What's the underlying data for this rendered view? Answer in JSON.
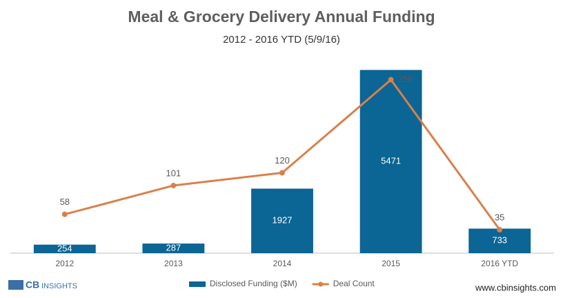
{
  "chart_data": {
    "type": "bar-line",
    "title": "Meal & Grocery Delivery Annual Funding",
    "subtitle": "2012 - 2016 YTD (5/9/16)",
    "categories": [
      "2012",
      "2013",
      "2014",
      "2015",
      "2016 YTD"
    ],
    "series": [
      {
        "name": "Disclosed Funding ($M)",
        "type": "bar",
        "color": "#0b6595",
        "values": [
          254,
          287,
          1927,
          5471,
          733
        ]
      },
      {
        "name": "Deal Count",
        "type": "line",
        "axis": "y2",
        "color": "#d9804a",
        "values": [
          58,
          101,
          120,
          259,
          35
        ]
      }
    ],
    "ylim": [
      0,
      5500
    ],
    "y2lim": [
      0,
      275
    ],
    "legend": "bottom",
    "brand": {
      "logo_bold": "CB",
      "logo_light": "INSIGHTS",
      "website": "www.cbinsights.com"
    }
  }
}
